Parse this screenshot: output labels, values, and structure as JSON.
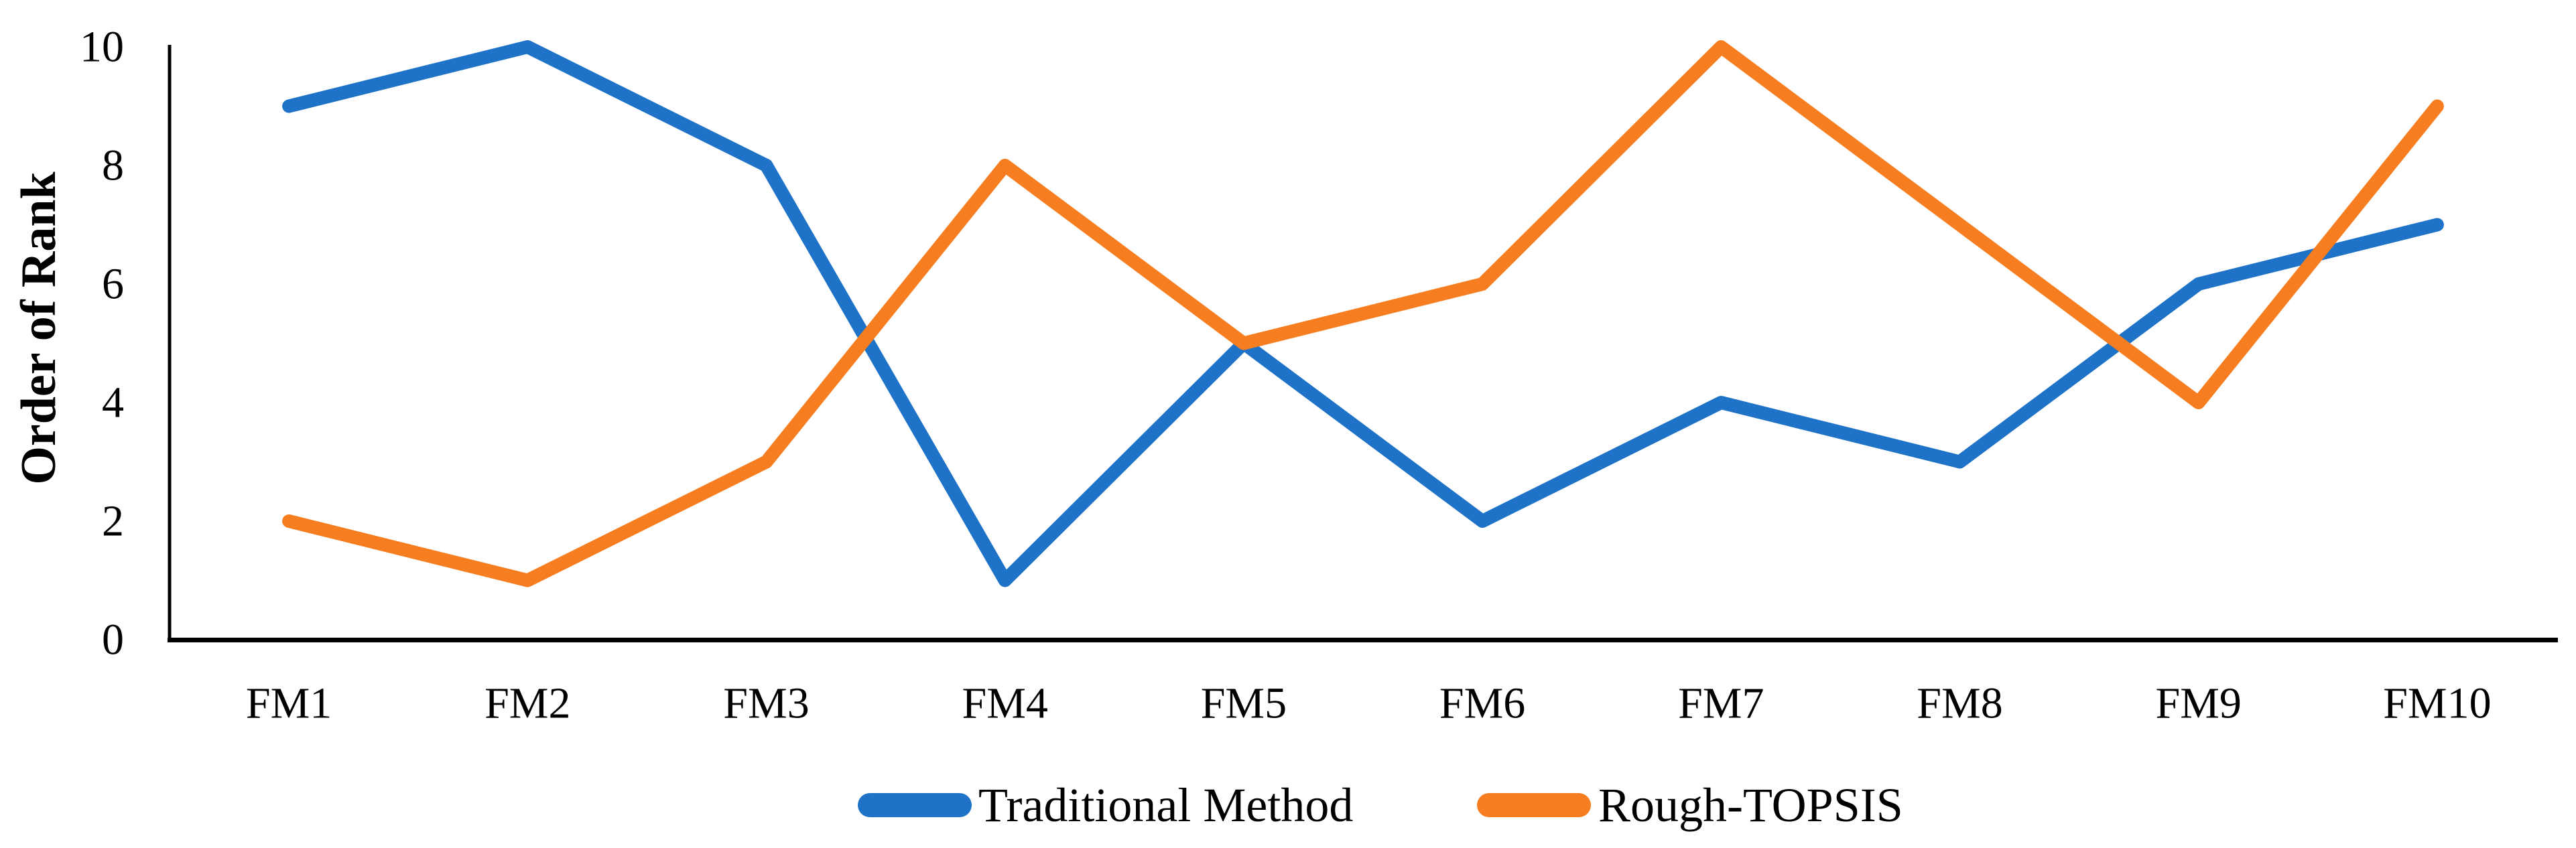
{
  "chart_data": {
    "type": "line",
    "title": "",
    "categories": [
      "FM1",
      "FM2",
      "FM3",
      "FM4",
      "FM5",
      "FM6",
      "FM7",
      "FM8",
      "FM9",
      "FM10"
    ],
    "series": [
      {
        "name": "Traditional Method",
        "color": "#1E73C8",
        "values": [
          9,
          10,
          8,
          1,
          5,
          2,
          4,
          3,
          6,
          7
        ]
      },
      {
        "name": "Rough-TOPSIS",
        "color": "#F67E20",
        "values": [
          2,
          1,
          3,
          8,
          5,
          6,
          10,
          7,
          4,
          9
        ]
      }
    ],
    "xlabel": "",
    "ylabel": "Order of Rank",
    "ylim": [
      0,
      10
    ],
    "yticks": [
      0,
      2,
      4,
      6,
      8,
      10
    ],
    "grid": false,
    "legend_position": "bottom-center",
    "axis_color": "#000000",
    "background_color": "#FFFFFF"
  }
}
